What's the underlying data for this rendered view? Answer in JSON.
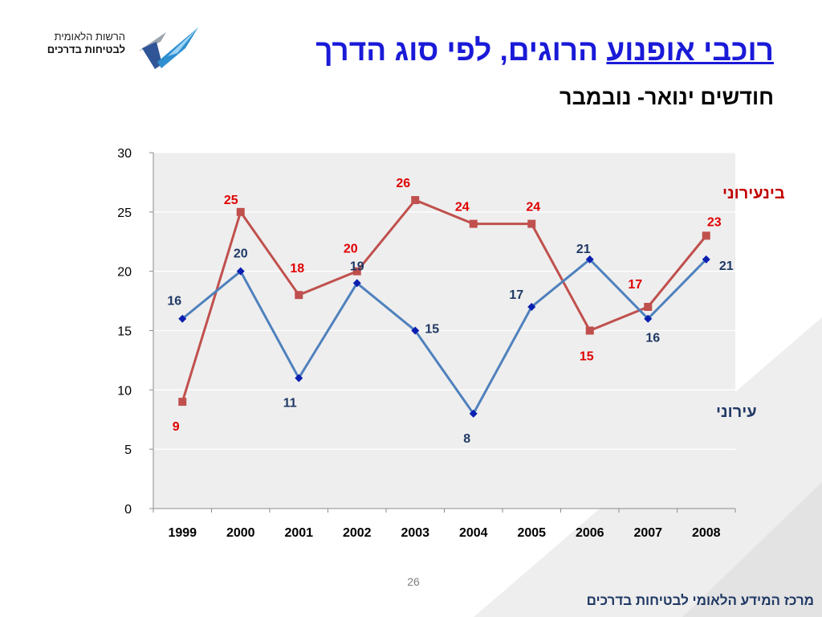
{
  "logo": {
    "line1": "הרשות הלאומית",
    "line2": "לבטיחות בדרכים"
  },
  "slide": {
    "title_part1": "רוכבי אופנוע",
    "title_part2": " הרוגים, לפי סוג הדרך",
    "subtitle": "חודשים ינואר- נובמבר",
    "page_number": "26",
    "footer": "מרכז המידע הלאומי לבטיחות בדרכים"
  },
  "chart_data": {
    "type": "line",
    "categories": [
      "1999",
      "2000",
      "2001",
      "2002",
      "2003",
      "2004",
      "2005",
      "2006",
      "2007",
      "2008"
    ],
    "ylim": [
      0,
      30
    ],
    "yticks": [
      0,
      5,
      10,
      15,
      20,
      25,
      30
    ],
    "grid": true,
    "series": [
      {
        "name": "בינעירוני",
        "color": "#c0504d",
        "label_color": "#e00000",
        "marker": "square",
        "values": [
          9,
          25,
          18,
          20,
          26,
          24,
          24,
          15,
          17,
          23
        ]
      },
      {
        "name": "עירוני",
        "color": "#4f81bd",
        "label_color": "#1f3864",
        "marker": "diamond",
        "values": [
          16,
          20,
          11,
          19,
          15,
          8,
          17,
          21,
          16,
          21
        ]
      }
    ]
  }
}
